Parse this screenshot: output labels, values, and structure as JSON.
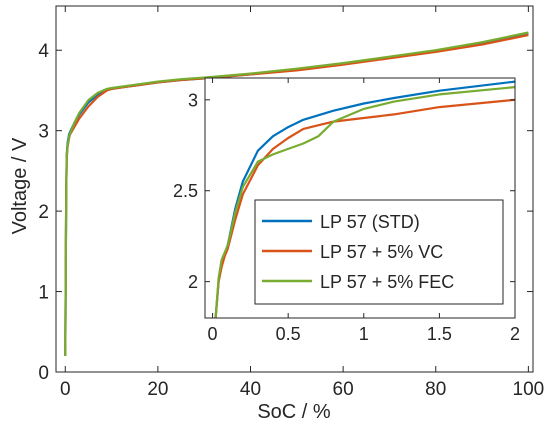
{
  "chart_data": [
    {
      "type": "line",
      "xlabel": "SoC / %",
      "ylabel": "Voltage / V",
      "xlim": [
        -2,
        101
      ],
      "ylim": [
        0,
        4.55
      ],
      "xticks": [
        0,
        20,
        40,
        60,
        80,
        100
      ],
      "yticks": [
        0,
        1,
        2,
        3,
        4
      ],
      "xtick_labels": [
        "0",
        "20",
        "40",
        "60",
        "80",
        "100"
      ],
      "ytick_labels": [
        "0",
        "1",
        "2",
        "3",
        "4"
      ],
      "series": [
        {
          "name": "LP 57 (STD)",
          "color": "#0072BD",
          "x": [
            0,
            0.1,
            0.2,
            0.3,
            0.5,
            0.8,
            1,
            2,
            3,
            5,
            7,
            9,
            10,
            15,
            20,
            25,
            30,
            40,
            50,
            60,
            70,
            80,
            90,
            100
          ],
          "y": [
            0.2,
            1.2,
            2.2,
            2.7,
            2.85,
            2.95,
            2.98,
            3.1,
            3.2,
            3.35,
            3.45,
            3.51,
            3.52,
            3.56,
            3.6,
            3.63,
            3.65,
            3.7,
            3.76,
            3.83,
            3.91,
            3.99,
            4.09,
            4.21
          ]
        },
        {
          "name": "LP 57 + 5% VC",
          "color": "#D95319",
          "x": [
            0,
            0.1,
            0.2,
            0.3,
            0.5,
            0.8,
            1,
            2,
            3,
            5,
            7,
            9,
            10,
            15,
            20,
            25,
            30,
            40,
            50,
            60,
            70,
            80,
            90,
            100
          ],
          "y": [
            0.2,
            1.2,
            2.2,
            2.65,
            2.8,
            2.9,
            2.95,
            3.05,
            3.15,
            3.3,
            3.42,
            3.5,
            3.52,
            3.56,
            3.6,
            3.63,
            3.65,
            3.7,
            3.75,
            3.82,
            3.9,
            3.98,
            4.07,
            4.19
          ]
        },
        {
          "name": "LP 57 + 5% FEC",
          "color": "#77AC30",
          "x": [
            0,
            0.1,
            0.2,
            0.3,
            0.5,
            0.8,
            1,
            2,
            3,
            5,
            7,
            9,
            10,
            15,
            20,
            25,
            30,
            40,
            50,
            60,
            70,
            80,
            90,
            100
          ],
          "y": [
            0.2,
            1.2,
            2.2,
            2.68,
            2.82,
            2.92,
            2.96,
            3.1,
            3.22,
            3.38,
            3.47,
            3.52,
            3.53,
            3.57,
            3.61,
            3.64,
            3.66,
            3.71,
            3.77,
            3.84,
            3.92,
            4.0,
            4.1,
            4.22
          ]
        }
      ]
    },
    {
      "type": "line",
      "xlim": [
        -0.05,
        2.0
      ],
      "ylim": [
        1.8,
        3.12
      ],
      "xticks": [
        0,
        0.5,
        1,
        1.5,
        2
      ],
      "yticks": [
        2,
        2.5,
        3
      ],
      "xtick_labels": [
        "0",
        "0.5",
        "1",
        "1.5",
        "2"
      ],
      "ytick_labels": [
        "2",
        "2.5",
        "3"
      ],
      "legend": "lower-right",
      "series": [
        {
          "name": "LP 57 (STD)",
          "color": "#0072BD",
          "x": [
            0.02,
            0.04,
            0.06,
            0.08,
            0.1,
            0.15,
            0.2,
            0.3,
            0.4,
            0.5,
            0.6,
            0.8,
            1.0,
            1.2,
            1.5,
            2.0
          ],
          "y": [
            1.8,
            2.0,
            2.1,
            2.15,
            2.2,
            2.4,
            2.55,
            2.72,
            2.8,
            2.85,
            2.89,
            2.94,
            2.98,
            3.01,
            3.05,
            3.1
          ]
        },
        {
          "name": "LP 57 + 5% VC",
          "color": "#D95319",
          "x": [
            0.02,
            0.04,
            0.06,
            0.08,
            0.1,
            0.15,
            0.2,
            0.3,
            0.4,
            0.5,
            0.6,
            0.8,
            1.0,
            1.2,
            1.5,
            2.0
          ],
          "y": [
            1.8,
            2.0,
            2.08,
            2.14,
            2.18,
            2.34,
            2.48,
            2.64,
            2.73,
            2.79,
            2.84,
            2.88,
            2.9,
            2.92,
            2.96,
            3.0
          ]
        },
        {
          "name": "LP 57 + 5% FEC",
          "color": "#77AC30",
          "x": [
            0.02,
            0.04,
            0.06,
            0.08,
            0.1,
            0.15,
            0.2,
            0.3,
            0.4,
            0.5,
            0.6,
            0.7,
            0.8,
            1.0,
            1.2,
            1.5,
            2.0
          ],
          "y": [
            1.8,
            2.02,
            2.12,
            2.16,
            2.2,
            2.38,
            2.52,
            2.66,
            2.7,
            2.73,
            2.76,
            2.8,
            2.88,
            2.95,
            2.99,
            3.03,
            3.07
          ]
        }
      ]
    }
  ]
}
